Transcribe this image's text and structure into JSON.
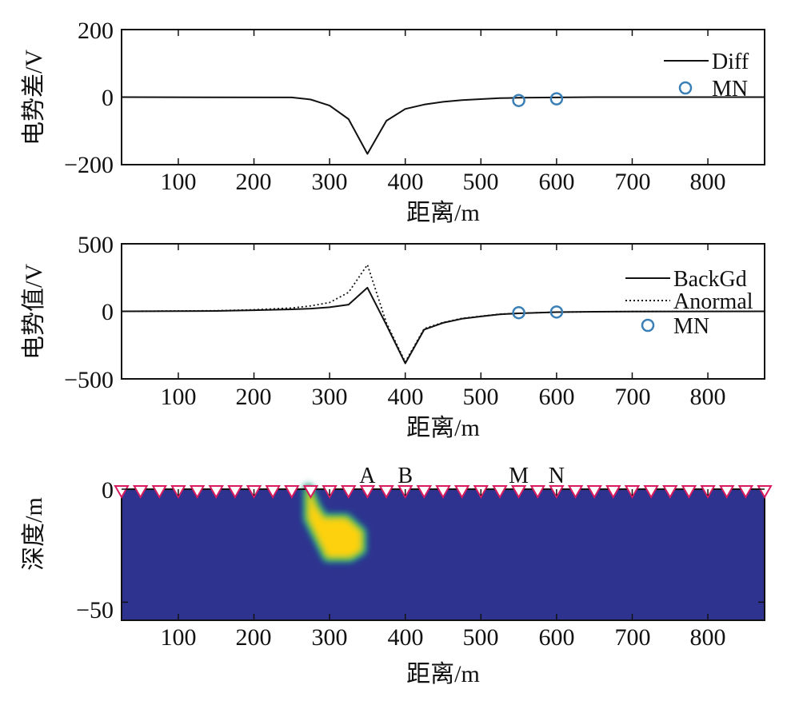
{
  "chart_data": [
    {
      "type": "line",
      "ylabel": "电势差/V",
      "xlabel": "距离/m",
      "xlim": [
        25,
        875
      ],
      "ylim": [
        -200,
        200
      ],
      "xticks": [
        "100",
        "200",
        "300",
        "400",
        "500",
        "600",
        "700",
        "800"
      ],
      "yticks": [
        "200",
        "0",
        "−200"
      ],
      "series": [
        {
          "name": "Diff",
          "style": "solid",
          "x": [
            25,
            250,
            275,
            300,
            325,
            350,
            375,
            400,
            425,
            450,
            475,
            500,
            525,
            550,
            600,
            650,
            700,
            875
          ],
          "y": [
            0,
            -1,
            -7,
            -25,
            -65,
            -168,
            -70,
            -35,
            -22,
            -14,
            -9,
            -6,
            -3,
            -2,
            -1,
            0,
            0,
            0
          ]
        }
      ],
      "markers": {
        "name": "MN",
        "x": [
          550,
          600
        ],
        "y": [
          -10,
          -5
        ],
        "color": "#3a7fb5"
      },
      "legend_position": "top-right"
    },
    {
      "type": "line",
      "ylabel": "电势值/V",
      "xlabel": "距离/m",
      "xlim": [
        25,
        875
      ],
      "ylim": [
        -500,
        500
      ],
      "xticks": [
        "100",
        "200",
        "300",
        "400",
        "500",
        "600",
        "700",
        "800"
      ],
      "yticks": [
        "500",
        "0",
        "−500"
      ],
      "series": [
        {
          "name": "BackGd",
          "style": "solid",
          "x": [
            25,
            150,
            200,
            250,
            275,
            300,
            325,
            350,
            375,
            400,
            425,
            450,
            475,
            500,
            525,
            550,
            600,
            650,
            700,
            875
          ],
          "y": [
            0,
            3,
            8,
            15,
            20,
            30,
            50,
            175,
            -100,
            -385,
            -135,
            -85,
            -55,
            -38,
            -22,
            -15,
            -6,
            -3,
            -1,
            0
          ]
        },
        {
          "name": "Anormal",
          "style": "dotted",
          "x": [
            25,
            150,
            200,
            250,
            275,
            300,
            325,
            350,
            375,
            400,
            425,
            450,
            475,
            500,
            525,
            550,
            600,
            650,
            700,
            875
          ],
          "y": [
            0,
            5,
            12,
            25,
            40,
            65,
            140,
            345,
            -85,
            -375,
            -128,
            -82,
            -52,
            -36,
            -21,
            -14,
            -6,
            -3,
            -1,
            0
          ]
        }
      ],
      "markers": {
        "name": "MN",
        "x": [
          550,
          600
        ],
        "y": [
          -10,
          -5
        ],
        "color": "#3a7fb5"
      },
      "legend_position": "top-right"
    },
    {
      "type": "heatmap",
      "ylabel": "深度/m",
      "xlabel": "距离/m",
      "xlim": [
        25,
        875
      ],
      "ylim": [
        -58,
        0
      ],
      "xticks": [
        "100",
        "200",
        "300",
        "400",
        "500",
        "600",
        "700",
        "800"
      ],
      "yticks": [
        "0",
        "−50"
      ],
      "background_color": "#2e338f",
      "anomaly": {
        "description_colors": [
          "#fdd10e",
          "#7fc24c",
          "#1f9a8f"
        ],
        "polygon_x": [
          272,
          282,
          292,
          322,
          342,
          342,
          327,
          297,
          272
        ],
        "polygon_y": [
          0,
          -8,
          -13,
          -13,
          -19,
          -27,
          -30,
          -30,
          -13
        ]
      },
      "electrodes": {
        "x_start": 25,
        "x_end": 875,
        "spacing": 25,
        "color": "#d81b60"
      },
      "electrode_labels": [
        {
          "text": "A",
          "x": 350
        },
        {
          "text": "B",
          "x": 400
        },
        {
          "text": "M",
          "x": 550
        },
        {
          "text": "N",
          "x": 600
        }
      ]
    }
  ]
}
